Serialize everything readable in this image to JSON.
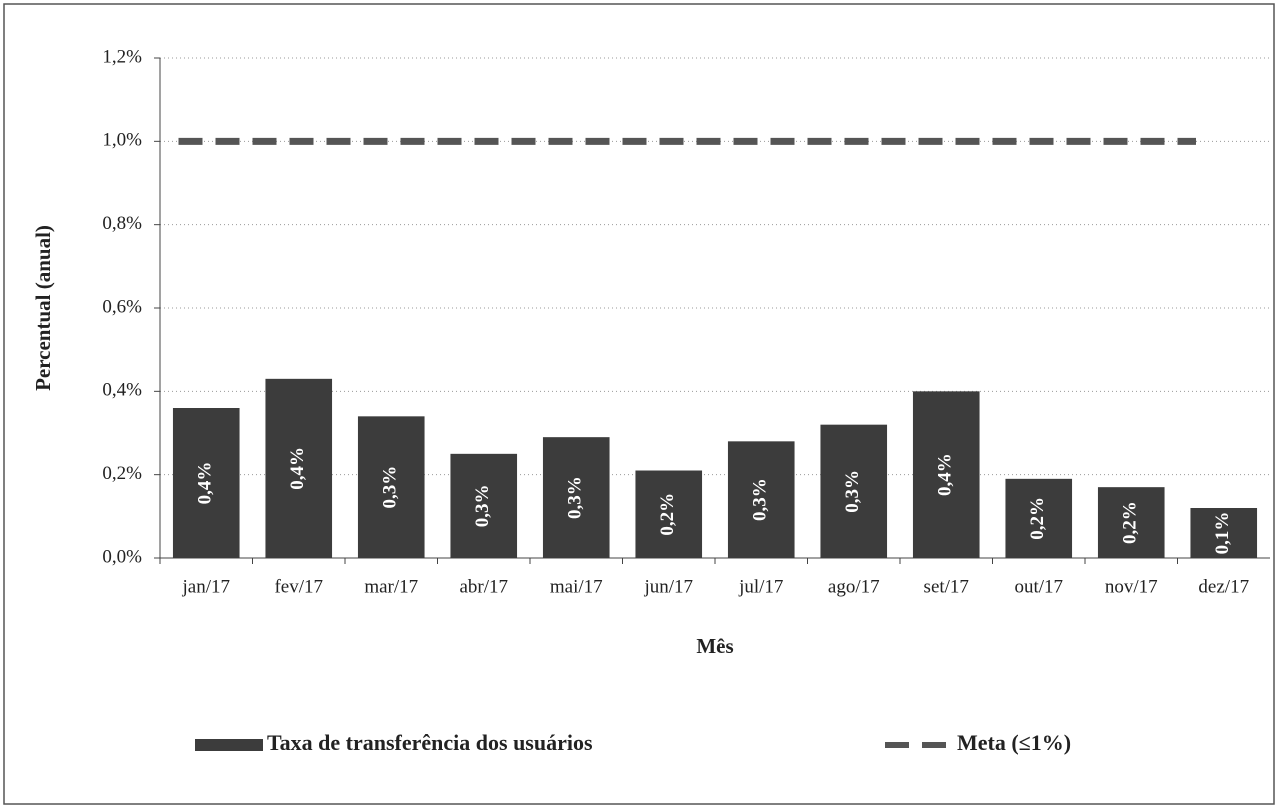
{
  "chart_data": {
    "type": "bar",
    "x_label": "Mês",
    "y_label": "Percentual (anual)",
    "categories": [
      "jan/17",
      "fev/17",
      "mar/17",
      "abr/17",
      "mai/17",
      "jun/17",
      "jul/17",
      "ago/17",
      "set/17",
      "out/17",
      "nov/17",
      "dez/17"
    ],
    "series": [
      {
        "name": "Taxa de transferência dos usuários",
        "type": "bar",
        "color": "#3c3c3c",
        "values": [
          0.36,
          0.43,
          0.34,
          0.25,
          0.29,
          0.21,
          0.28,
          0.32,
          0.4,
          0.19,
          0.17,
          0.12
        ],
        "value_labels": [
          "0,4%",
          "0,4%",
          "0,3%",
          "0,3%",
          "0,3%",
          "0,2%",
          "0,3%",
          "0,3%",
          "0,4%",
          "0,2%",
          "0,2%",
          "0,1%"
        ]
      },
      {
        "name": "Meta (≤1%)",
        "type": "line",
        "color": "#555555",
        "values": [
          1,
          1,
          1,
          1,
          1,
          1,
          1,
          1,
          1,
          1,
          1,
          1
        ]
      }
    ],
    "ylim": [
      0,
      1.2
    ],
    "yticks": [
      {
        "value": 0,
        "label": "0,0%"
      },
      {
        "value": 0.2,
        "label": "0,2%"
      },
      {
        "value": 0.4,
        "label": "0,4%"
      },
      {
        "value": 0.6,
        "label": "0,6%"
      },
      {
        "value": 0.8,
        "label": "0,8%"
      },
      {
        "value": 1,
        "label": "1,0%"
      },
      {
        "value": 1.2,
        "label": "1,2%"
      }
    ],
    "grid": true,
    "legend": "bottom"
  }
}
